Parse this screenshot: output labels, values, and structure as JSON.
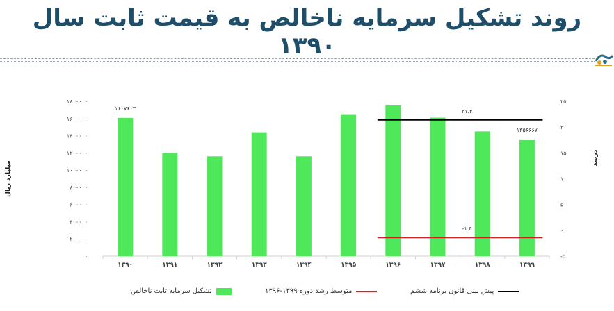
{
  "page": {
    "title": "روند تشکیل سرمایه ناخالص به قیمت ثابت سال ۱۳۹۰"
  },
  "chart_data": {
    "type": "bar",
    "categories": [
      "۱۳۹۰",
      "۱۳۹۱",
      "۱۳۹۲",
      "۱۳۹۳",
      "۱۳۹۴",
      "۱۳۹۵",
      "۱۳۹۶",
      "۱۳۹۷",
      "۱۳۹۸",
      "۱۳۹۹"
    ],
    "values": [
      1607603,
      1200000,
      1160000,
      1440000,
      1160000,
      1650000,
      1760000,
      1610000,
      1450000,
      1356667
    ],
    "value_labels": [
      {
        "index": 0,
        "text": "۱۶۰۷۶۰۳"
      },
      {
        "index": 9,
        "text": "۱۳۵۶۶۶۷"
      }
    ],
    "ylabel": "میلیارد ریال",
    "ylim": [
      0,
      1800000
    ],
    "yticks": [
      {
        "v": 0,
        "label": "۰"
      },
      {
        "v": 200000,
        "label": "۲۰۰۰۰۰"
      },
      {
        "v": 400000,
        "label": "۴۰۰۰۰۰"
      },
      {
        "v": 600000,
        "label": "۶۰۰۰۰۰"
      },
      {
        "v": 800000,
        "label": "۸۰۰۰۰۰"
      },
      {
        "v": 1000000,
        "label": "۱۰۰۰۰۰۰"
      },
      {
        "v": 1200000,
        "label": "۱۲۰۰۰۰۰"
      },
      {
        "v": 1400000,
        "label": "۱۴۰۰۰۰۰"
      },
      {
        "v": 1600000,
        "label": "۱۶۰۰۰۰۰"
      },
      {
        "v": 1800000,
        "label": "۱۸۰۰۰۰۰"
      }
    ],
    "y2label": "درصد",
    "y2lim": [
      -5,
      25
    ],
    "y2ticks": [
      {
        "v": -5,
        "label": "-۵"
      },
      {
        "v": 0,
        "label": "۰"
      },
      {
        "v": 5,
        "label": "۵"
      },
      {
        "v": 10,
        "label": "۱۰"
      },
      {
        "v": 15,
        "label": "۱۵"
      },
      {
        "v": 20,
        "label": "۲۰"
      },
      {
        "v": 25,
        "label": "۲۵"
      }
    ],
    "lines": [
      {
        "name": "پیش بینی قانون برنامه ششم",
        "value": 21.4,
        "label": "۲۱.۴",
        "from_index": 6,
        "to_index": 9,
        "color": "#000000"
      },
      {
        "name": "متوسط رشد دوره ۱۳۹۹-۱۳۹۶",
        "value": -1.4,
        "label": "-۱.۴",
        "from_index": 6,
        "to_index": 9,
        "color": "#d42020"
      }
    ],
    "bar_series_name": "تشکیل سرمایه ثابت ناخالص",
    "bar_color": "#4ee85a",
    "grid": false,
    "legend_position": "bottom"
  }
}
